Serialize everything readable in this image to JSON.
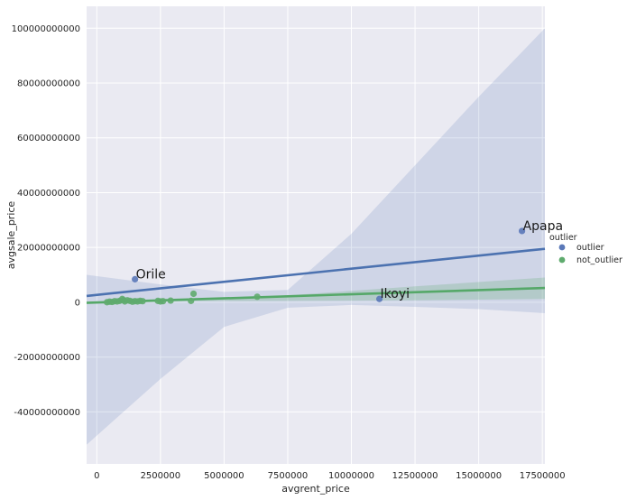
{
  "chart_data": {
    "type": "scatter",
    "title": "",
    "xlabel": "avgrent_price",
    "ylabel": "avgsale_price",
    "xlim": [
      -400000,
      17600000
    ],
    "ylim": [
      -59000000000,
      108000000000
    ],
    "x_ticks": [
      0,
      2500000,
      5000000,
      7500000,
      10000000,
      12500000,
      15000000,
      17500000
    ],
    "x_tick_labels": [
      "0",
      "2500000",
      "5000000",
      "7500000",
      "10000000",
      "12500000",
      "15000000",
      "17500000"
    ],
    "y_ticks": [
      -40000000000,
      -20000000000,
      0,
      20000000000,
      40000000000,
      60000000000,
      80000000000,
      100000000000
    ],
    "y_tick_labels": [
      "-40000000000",
      "-20000000000",
      "0",
      "20000000000",
      "40000000000",
      "60000000000",
      "80000000000",
      "100000000000"
    ],
    "grid": true,
    "legend": {
      "title": "outlier",
      "placement": "right",
      "entries": [
        {
          "label": "outlier",
          "color": "#5a78b8"
        },
        {
          "label": "not_outlier",
          "color": "#5fab6e"
        }
      ]
    },
    "series": [
      {
        "name": "outlier",
        "color": "#5a78b8",
        "x": [
          1500000,
          16700000,
          11100000
        ],
        "y": [
          8400000000,
          26000000000,
          1200000000
        ],
        "regression": {
          "x": [
            -400000,
            17600000
          ],
          "y": [
            2300000000,
            19500000000
          ]
        },
        "ci_upper": {
          "x": [
            -400000,
            2500000,
            5000000,
            7500000,
            10000000,
            12500000,
            15000000,
            17600000
          ],
          "y": [
            10000000000,
            6500000000,
            3800000000,
            4500000000,
            25000000000,
            50000000000,
            75000000000,
            100000000000
          ]
        },
        "ci_lower": {
          "x": [
            -400000,
            2500000,
            5000000,
            7500000,
            10000000,
            12500000,
            15000000,
            17600000
          ],
          "y": [
            -52000000000,
            -28000000000,
            -9000000000,
            -2000000000,
            -1000000000,
            -1700000000,
            -2500000000,
            -4000000000
          ]
        }
      },
      {
        "name": "not_outlier",
        "color": "#5fab6e",
        "x": [
          400000,
          500000,
          600000,
          700000,
          800000,
          900000,
          1000000,
          1050000,
          1100000,
          1200000,
          1300000,
          1400000,
          1500000,
          1600000,
          1700000,
          1800000,
          2400000,
          2500000,
          2600000,
          2900000,
          3700000,
          3800000,
          6300000
        ],
        "y": [
          0,
          200000000,
          100000000,
          400000000,
          300000000,
          500000000,
          1200000000,
          800000000,
          300000000,
          700000000,
          500000000,
          200000000,
          400000000,
          300000000,
          500000000,
          400000000,
          500000000,
          300000000,
          400000000,
          600000000,
          500000000,
          3100000000,
          2000000000
        ],
        "regression": {
          "x": [
            -400000,
            17600000
          ],
          "y": [
            -200000000,
            5200000000
          ]
        },
        "ci_upper": {
          "x": [
            -400000,
            2000000,
            4000000,
            7500000,
            12500000,
            17600000
          ],
          "y": [
            300000000,
            500000000,
            1000000000,
            2500000000,
            5800000000,
            9000000000
          ]
        },
        "ci_lower": {
          "x": [
            -400000,
            2000000,
            4000000,
            7500000,
            12500000,
            17600000
          ],
          "y": [
            -700000000,
            0,
            400000000,
            500000000,
            700000000,
            1200000000
          ]
        }
      }
    ],
    "annotations": [
      {
        "text": "Orile",
        "x": 1500000,
        "y": 8400000000
      },
      {
        "text": "Apapa",
        "x": 16700000,
        "y": 26000000000
      },
      {
        "text": "Ikoyi",
        "x": 11100000,
        "y": 1200000000
      }
    ]
  }
}
